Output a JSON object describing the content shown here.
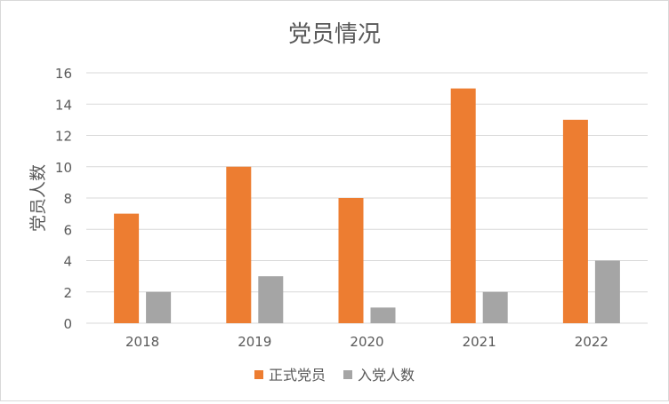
{
  "chart_data": {
    "type": "bar",
    "title": "党员情况",
    "xlabel": "",
    "ylabel": "党员人数",
    "categories": [
      "2018",
      "2019",
      "2020",
      "2021",
      "2022"
    ],
    "series": [
      {
        "name": "正式党员",
        "color": "#ED7D31",
        "values": [
          7,
          10,
          8,
          15,
          13
        ]
      },
      {
        "name": "入党人数",
        "color": "#A5A5A5",
        "values": [
          2,
          3,
          1,
          2,
          4
        ]
      }
    ],
    "ylim": [
      0,
      16
    ],
    "yticks": [
      "0",
      "2",
      "4",
      "6",
      "8",
      "10",
      "12",
      "14",
      "16"
    ],
    "grid": true,
    "legend_position": "bottom"
  }
}
